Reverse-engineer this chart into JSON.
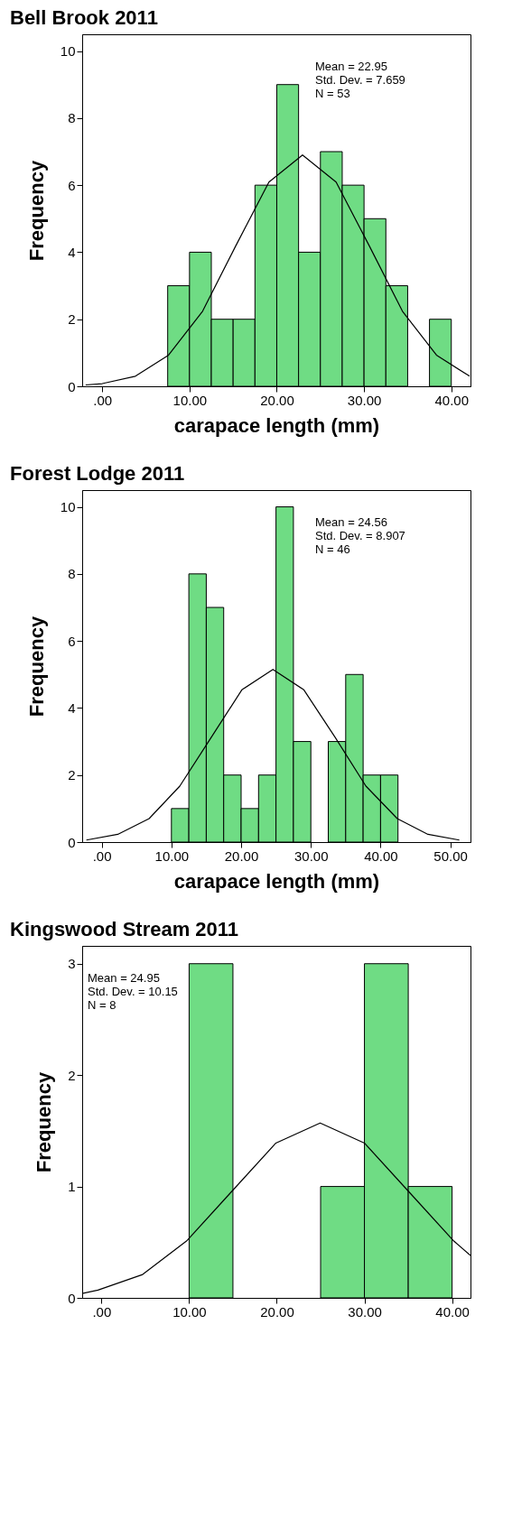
{
  "chart_data": [
    {
      "type": "histogram",
      "title": "Bell Brook 2011",
      "xlabel": "carapace length (mm)",
      "ylabel": "Frequency",
      "color": "#6fdc84",
      "bins": [
        7.5,
        10,
        12.5,
        15,
        17.5,
        20,
        22.5,
        25,
        27.5,
        30,
        32.5,
        35,
        37.5,
        40
      ],
      "values": [
        3,
        4,
        2,
        2,
        6,
        9,
        4,
        7,
        6,
        5,
        3,
        0,
        2
      ],
      "series": [
        {
          "type": "line",
          "color": "#000000",
          "x": [
            -1.9,
            0.0,
            3.8,
            7.6,
            11.5,
            15.3,
            19.1,
            22.95,
            26.8,
            30.6,
            34.4,
            38.3,
            42.1
          ],
          "values": [
            0.04,
            0.08,
            0.3,
            0.93,
            2.24,
            4.19,
            6.09,
            6.9,
            6.09,
            4.19,
            2.24,
            0.93,
            0.3
          ]
        }
      ],
      "annotations": [
        "Mean = 22.95",
        "Std. Dev. = 7.659",
        "N = 53"
      ],
      "xlim": [
        -2.3,
        42.2
      ],
      "ylim": [
        0,
        10.5
      ],
      "xticks": [
        {
          "value": 0,
          "label": ".00"
        },
        {
          "value": 10,
          "label": "10.00"
        },
        {
          "value": 20,
          "label": "20.00"
        },
        {
          "value": 30,
          "label": "30.00"
        },
        {
          "value": 40,
          "label": "40.00"
        }
      ],
      "yticks": [
        0,
        2,
        4,
        6,
        8,
        10
      ],
      "grid": false
    },
    {
      "type": "histogram",
      "title": "Forest Lodge 2011",
      "xlabel": "carapace length (mm)",
      "ylabel": "Frequency",
      "color": "#6fdc84",
      "bins": [
        10,
        12.5,
        15,
        17.5,
        20,
        22.5,
        25,
        27.5,
        30,
        32.5,
        35,
        37.5,
        40,
        42.5
      ],
      "values": [
        1,
        8,
        7,
        2,
        1,
        2,
        10,
        3,
        0,
        3,
        5,
        2,
        2
      ],
      "series": [
        {
          "type": "line",
          "color": "#000000",
          "x": [
            -2.2,
            2.3,
            6.8,
            11.2,
            15.7,
            20.1,
            24.56,
            29.0,
            33.5,
            37.9,
            42.4,
            46.8,
            51.3
          ],
          "values": [
            0.06,
            0.23,
            0.7,
            1.67,
            3.12,
            4.54,
            5.15,
            4.54,
            3.12,
            1.67,
            0.7,
            0.23,
            0.06
          ]
        }
      ],
      "annotations": [
        "Mean = 24.56",
        "Std. Dev. = 8.907",
        "N = 46"
      ],
      "xlim": [
        -2.8,
        52.9
      ],
      "ylim": [
        0,
        10.5
      ],
      "xticks": [
        {
          "value": 0,
          "label": ".00"
        },
        {
          "value": 10,
          "label": "10.00"
        },
        {
          "value": 20,
          "label": "20.00"
        },
        {
          "value": 30,
          "label": "30.00"
        },
        {
          "value": 40,
          "label": "40.00"
        },
        {
          "value": 50,
          "label": "50.00"
        }
      ],
      "yticks": [
        0,
        2,
        4,
        6,
        8,
        10
      ],
      "grid": false
    },
    {
      "type": "histogram",
      "title": "Kingswood Stream 2011",
      "ylabel": "Frequency",
      "color": "#6fdc84",
      "bins": [
        10,
        15,
        20,
        25,
        30,
        35,
        40
      ],
      "values": [
        3,
        0,
        0,
        1,
        3,
        1
      ],
      "series": [
        {
          "type": "line",
          "color": "#000000",
          "x": [
            -2.2,
            -0.4,
            4.7,
            9.7,
            14.8,
            19.9,
            24.95,
            30.0,
            35.1,
            40.2,
            42.1
          ],
          "values": [
            0.04,
            0.07,
            0.21,
            0.51,
            0.95,
            1.39,
            1.57,
            1.39,
            0.95,
            0.51,
            0.38
          ]
        }
      ],
      "annotations": [
        "Mean = 24.95",
        "Std. Dev. = 10.15",
        "N = 8"
      ],
      "xlim": [
        -2.2,
        42.1
      ],
      "ylim": [
        0,
        3.16
      ],
      "xticks": [
        {
          "value": 0,
          "label": ".00"
        },
        {
          "value": 10,
          "label": "10.00"
        },
        {
          "value": 20,
          "label": "20.00"
        },
        {
          "value": 30,
          "label": "30.00"
        },
        {
          "value": 40,
          "label": "40.00"
        }
      ],
      "yticks": [
        0,
        1,
        2,
        3
      ],
      "grid": false
    }
  ]
}
